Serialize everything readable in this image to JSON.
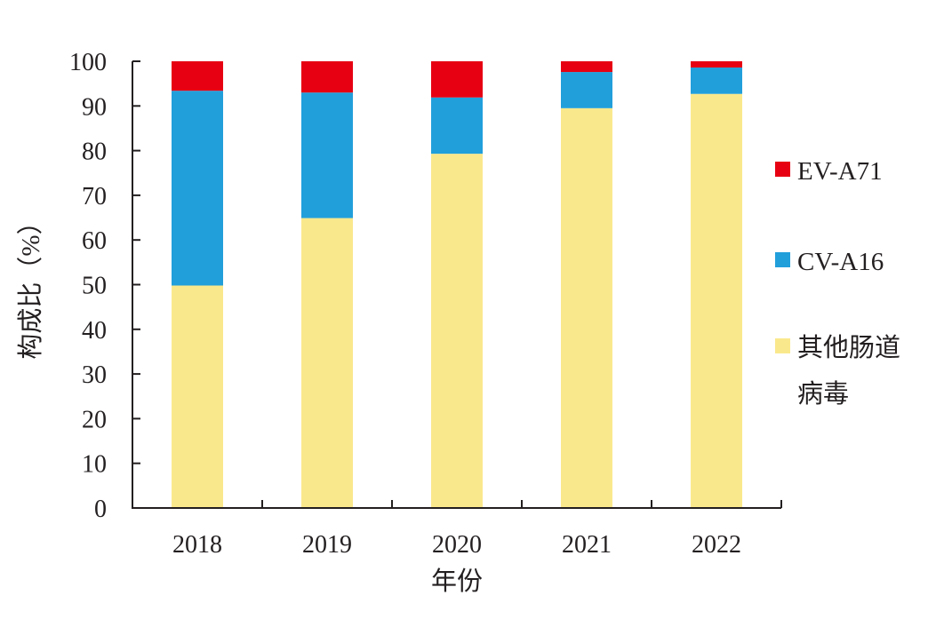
{
  "chart_data": {
    "type": "bar",
    "stacked": true,
    "xlabel": "年份",
    "ylabel": "构成比（%）",
    "categories": [
      "2018",
      "2019",
      "2020",
      "2021",
      "2022"
    ],
    "ylim": [
      0,
      100
    ],
    "yticks": [
      "0",
      "10",
      "20",
      "30",
      "40",
      "50",
      "60",
      "70",
      "80",
      "90",
      "100"
    ],
    "grid": false,
    "legend_position": "right",
    "series": [
      {
        "name": "其他肠道病毒",
        "legend_lines": [
          "其他肠道",
          "病毒"
        ],
        "color": "#fae88c",
        "values": [
          49.8,
          64.9,
          79.3,
          89.5,
          92.7
        ]
      },
      {
        "name": "CV-A16",
        "color": "#219fdb",
        "values": [
          43.6,
          28.1,
          12.6,
          8.1,
          5.9
        ]
      },
      {
        "name": "EV-A71",
        "color": "#e60012",
        "values": [
          6.6,
          7.0,
          8.1,
          2.4,
          1.4
        ]
      }
    ],
    "legend_order": [
      "EV-A71",
      "CV-A16",
      "其他肠道病毒"
    ]
  }
}
